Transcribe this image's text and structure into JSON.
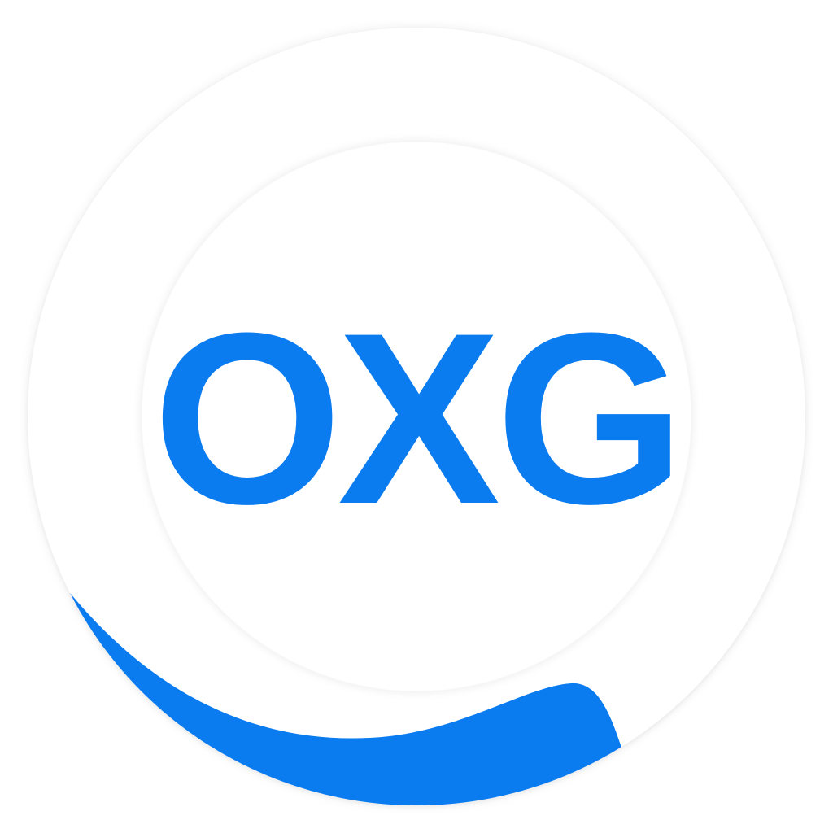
{
  "logo": {
    "text": "OXG",
    "brand_color": "#0a7cf0",
    "background_color": "#ffffff",
    "wave_color": "#0a7cf0"
  }
}
